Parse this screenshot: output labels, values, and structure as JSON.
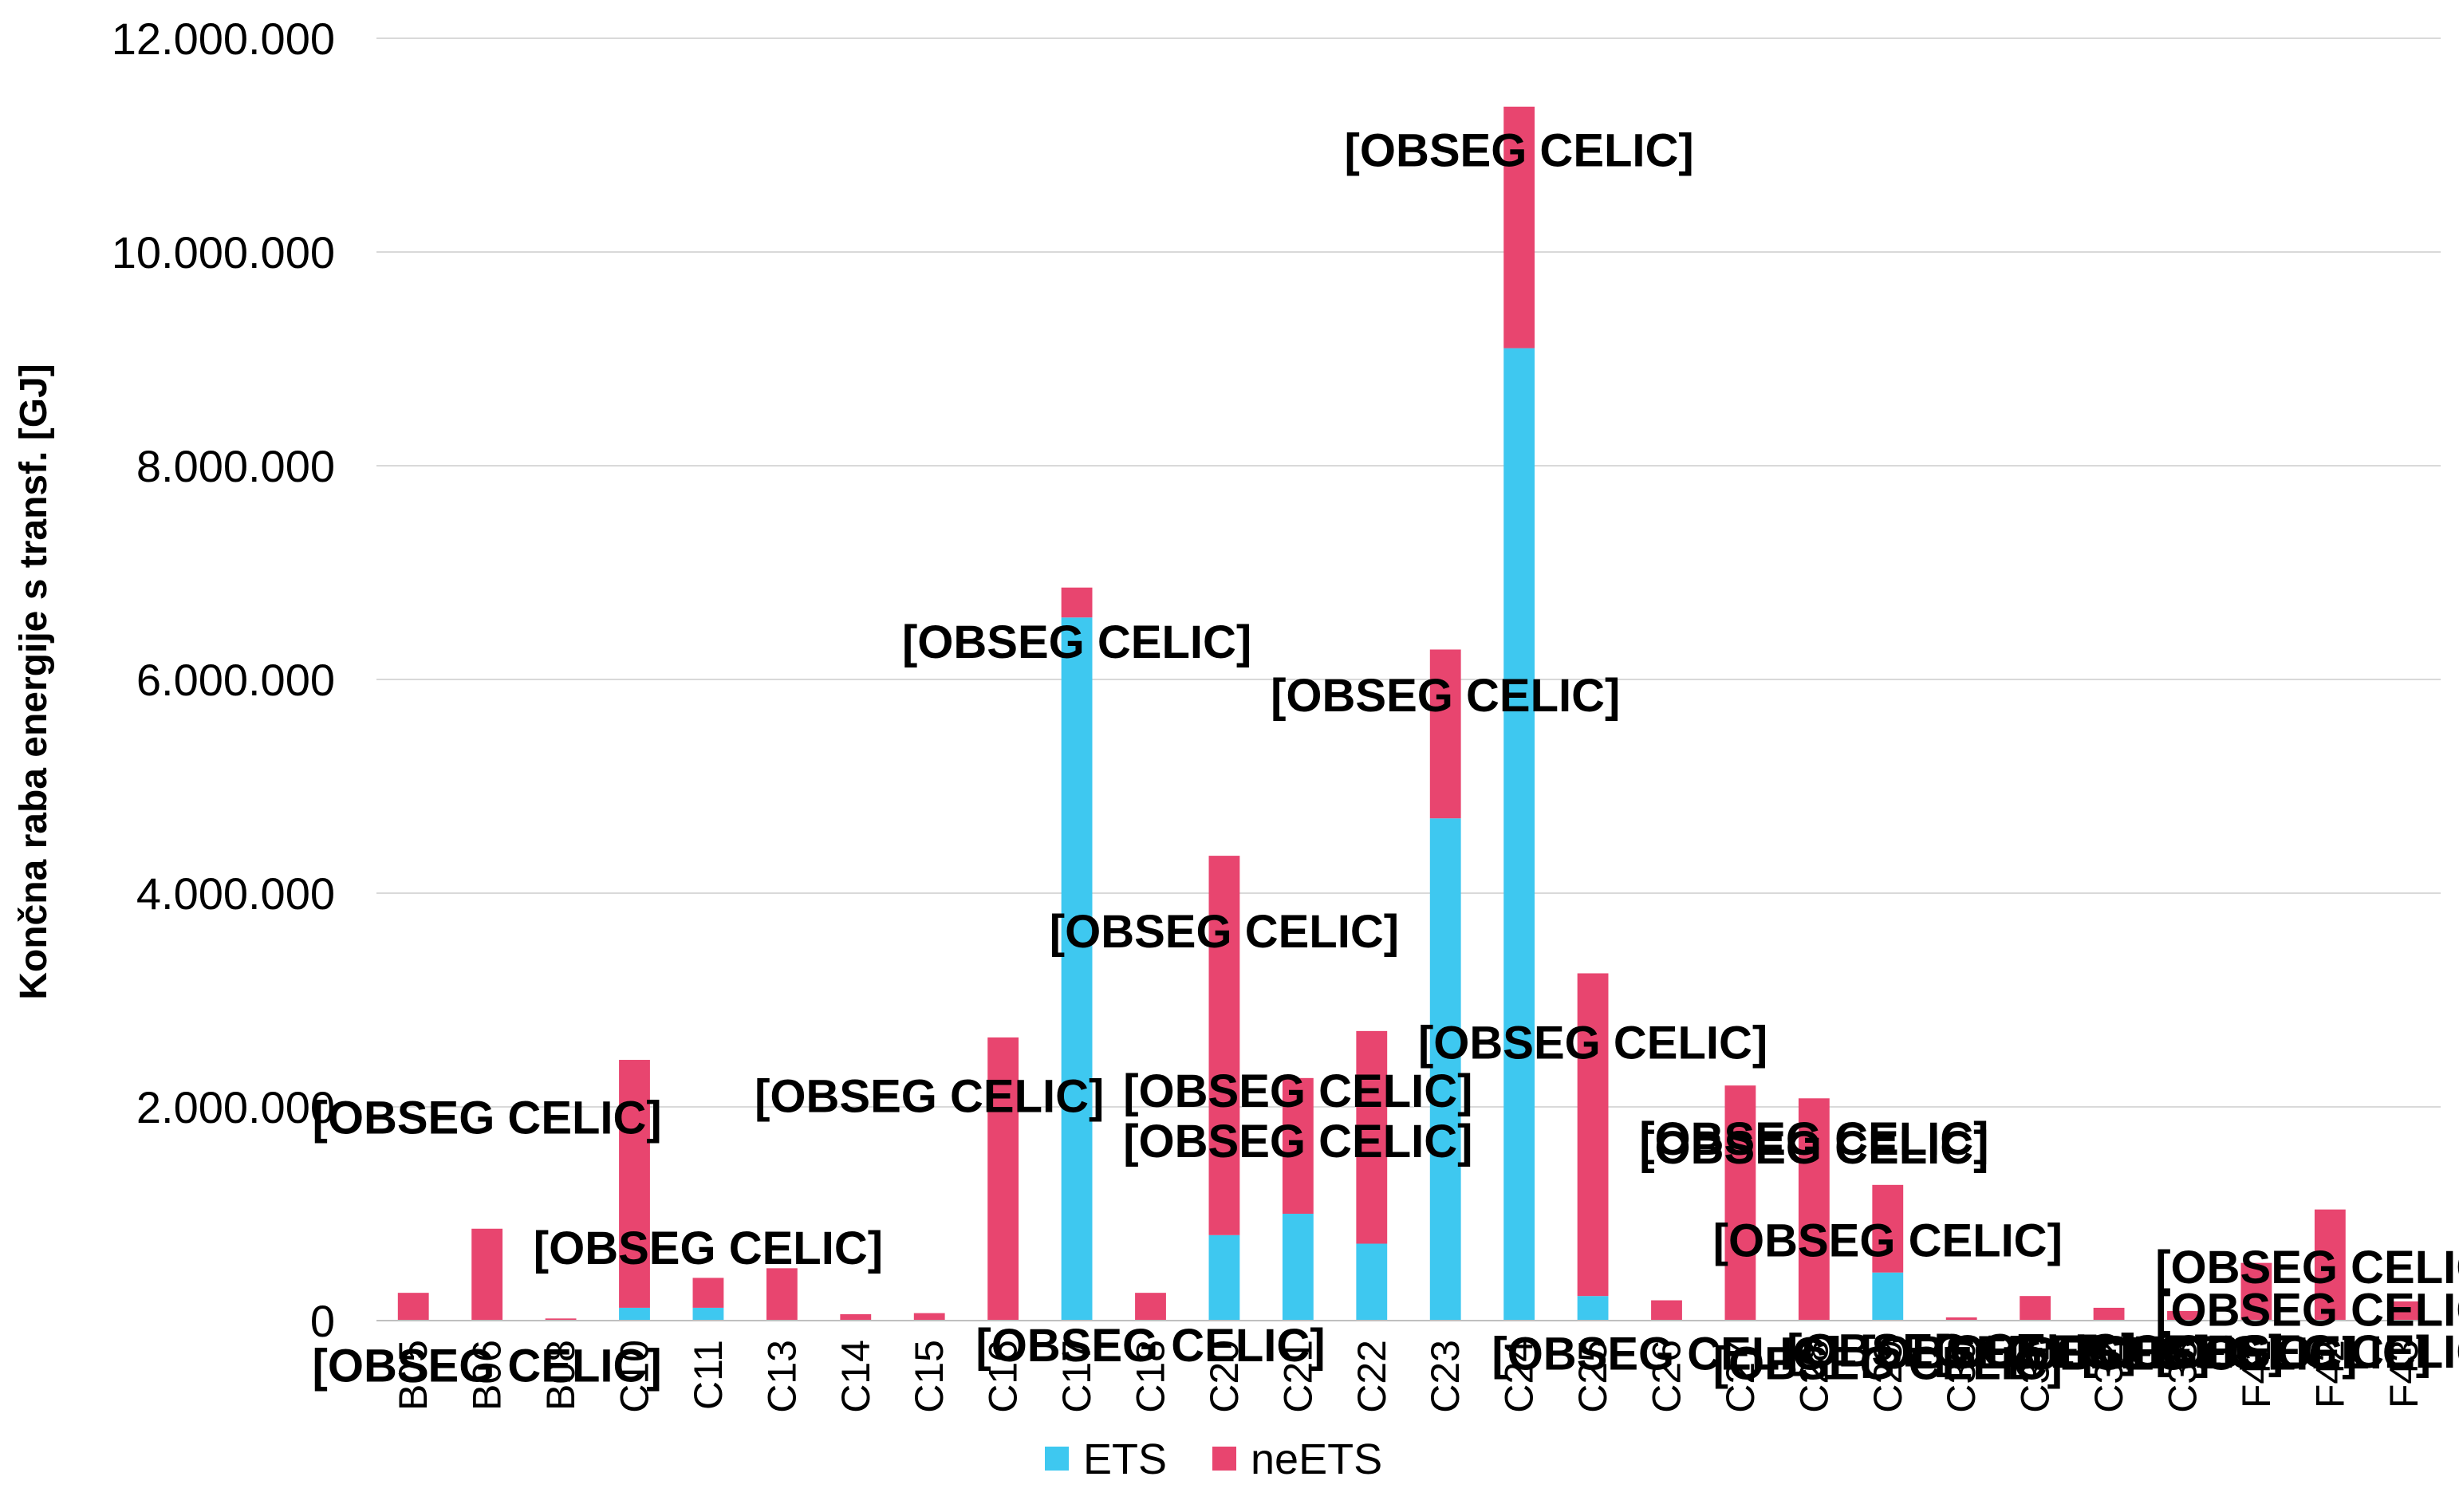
{
  "chart_data": {
    "type": "bar",
    "stacked": true,
    "title": "",
    "xlabel": "",
    "ylabel": "Končna raba energije s transf. [GJ]",
    "ylim": [
      0,
      12000000
    ],
    "yticks": [
      0,
      2000000,
      4000000,
      6000000,
      8000000,
      10000000,
      12000000
    ],
    "ytick_labels": [
      "0",
      "2.000.000",
      "4.000.000",
      "6.000.000",
      "8.000.000",
      "10.000.000",
      "12.000.000"
    ],
    "grid": true,
    "legend": "bottom",
    "categories": [
      "B05",
      "B06",
      "B08",
      "C10",
      "C11",
      "C13",
      "C14",
      "C15",
      "C16",
      "C17",
      "C18",
      "C20",
      "C21",
      "C22",
      "C23",
      "C24",
      "C25",
      "C26",
      "C27",
      "C28",
      "C29",
      "C30",
      "C31",
      "C32",
      "C33",
      "F41",
      "F42",
      "F43"
    ],
    "category_labels_visible": [
      "B05",
      "B06",
      "B08",
      "C10",
      "C11",
      "C13",
      "C14",
      "C15",
      "C16",
      "C17",
      "C18",
      "C20",
      "C21",
      "C22",
      "C23",
      "C24",
      "C25",
      "C26",
      "C27",
      "C28",
      "C29",
      "C30",
      "C31",
      "C32",
      "C33",
      "F41",
      "F42",
      "F43"
    ],
    "series": [
      {
        "name": "ETS",
        "color": "#3ec8f0",
        "values": [
          0,
          0,
          0,
          120000,
          120000,
          0,
          0,
          0,
          0,
          6580000,
          0,
          800000,
          1000000,
          720000,
          4700000,
          9100000,
          230000,
          0,
          0,
          0,
          450000,
          0,
          0,
          0,
          0,
          0,
          0,
          0
        ]
      },
      {
        "name": "neETS",
        "color": "#e8456f",
        "values": [
          260000,
          860000,
          20000,
          2320000,
          280000,
          490000,
          60000,
          70000,
          2650000,
          280000,
          260000,
          3550000,
          1270000,
          1990000,
          1580000,
          2260000,
          3020000,
          190000,
          2200000,
          2080000,
          820000,
          30000,
          230000,
          120000,
          90000,
          540000,
          1040000,
          180000
        ]
      }
    ],
    "data_labels": [
      {
        "text": "[OBSEG CELIC]",
        "x": "B06",
        "y": 1900000
      },
      {
        "text": "[OBSEG CELIC]",
        "x": "B06",
        "y": -420000
      },
      {
        "text": "[OBSEG CELIC]",
        "x": "C11",
        "y": 680000
      },
      {
        "text": "[OBSEG CELIC]",
        "x": "C15",
        "y": 2100000
      },
      {
        "text": "[OBSEG CELIC]",
        "x": "C17",
        "y": 6350000
      },
      {
        "text": "[OBSEG CELIC]",
        "x": "C18",
        "y": -230000
      },
      {
        "text": "[OBSEG CELIC]",
        "x": "C20",
        "y": 3640000
      },
      {
        "text": "[OBSEG CELIC]",
        "x": "C21",
        "y": 1680000
      },
      {
        "text": "[OBSEG CELIC]",
        "x": "C21",
        "y": 2150000
      },
      {
        "text": "[OBSEG CELIC]",
        "x": "C23",
        "y": 5850000
      },
      {
        "text": "[OBSEG CELIC]",
        "x": "C24",
        "y": 10950000
      },
      {
        "text": "[OBSEG CELIC]",
        "x": "C25",
        "y": 2600000
      },
      {
        "text": "[OBSEG CELIC]",
        "x": "C26",
        "y": -310000
      },
      {
        "text": "[OBSEG CELIC]",
        "x": "C28",
        "y": 1700000
      },
      {
        "text": "[OBSEG CELIC]",
        "x": "C28",
        "y": 1620000
      },
      {
        "text": "[OBSEG CELIC]",
        "x": "C29",
        "y": 750000
      },
      {
        "text": "[OBSEG CELIC]",
        "x": "C29",
        "y": -400000
      },
      {
        "text": "[OBSEG CELIC]",
        "x": "C30",
        "y": -280000
      },
      {
        "text": "[OBSEG CELIC]",
        "x": "C31",
        "y": -300000
      },
      {
        "text": "[OBSEG CELIC]",
        "x": "C32",
        "y": -290000
      },
      {
        "text": "[OBSEG CELIC]",
        "x": "C33",
        "y": -310000
      },
      {
        "text": "[OBSEG CELIC]",
        "x": "F41",
        "y": -300000
      },
      {
        "text": "[OBSEG CELIC]",
        "x": "F42",
        "y": 500000
      },
      {
        "text": "[OBSEG CELIC]",
        "x": "F42",
        "y": 100000
      },
      {
        "text": "[OBSEG CELIC]",
        "x": "F42",
        "y": -290000
      }
    ]
  }
}
